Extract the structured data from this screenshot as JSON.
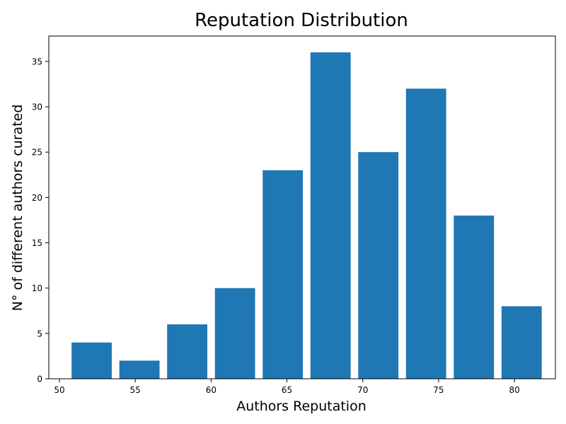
{
  "chart_data": {
    "type": "bar",
    "title": "Reputation Distribution",
    "xlabel": "Authors Reputation",
    "ylabel": "N° of different authors curated",
    "bars": [
      {
        "x_start": 50.8,
        "x_end": 53.45,
        "value": 4
      },
      {
        "x_start": 53.95,
        "x_end": 56.6,
        "value": 2
      },
      {
        "x_start": 57.1,
        "x_end": 59.75,
        "value": 6
      },
      {
        "x_start": 60.25,
        "x_end": 62.9,
        "value": 10
      },
      {
        "x_start": 63.4,
        "x_end": 66.05,
        "value": 23
      },
      {
        "x_start": 66.55,
        "x_end": 69.2,
        "value": 36
      },
      {
        "x_start": 69.7,
        "x_end": 72.35,
        "value": 25
      },
      {
        "x_start": 72.85,
        "x_end": 75.5,
        "value": 32
      },
      {
        "x_start": 76.0,
        "x_end": 78.65,
        "value": 18
      },
      {
        "x_start": 79.15,
        "x_end": 81.8,
        "value": 8
      }
    ],
    "xlim": [
      49.3,
      82.7
    ],
    "ylim": [
      0,
      37.8
    ],
    "xticks": [
      50,
      55,
      60,
      65,
      70,
      75,
      80
    ],
    "yticks": [
      0,
      5,
      10,
      15,
      20,
      25,
      30,
      35
    ],
    "bar_color": "#1f77b4",
    "grid": false,
    "legend": "none"
  }
}
